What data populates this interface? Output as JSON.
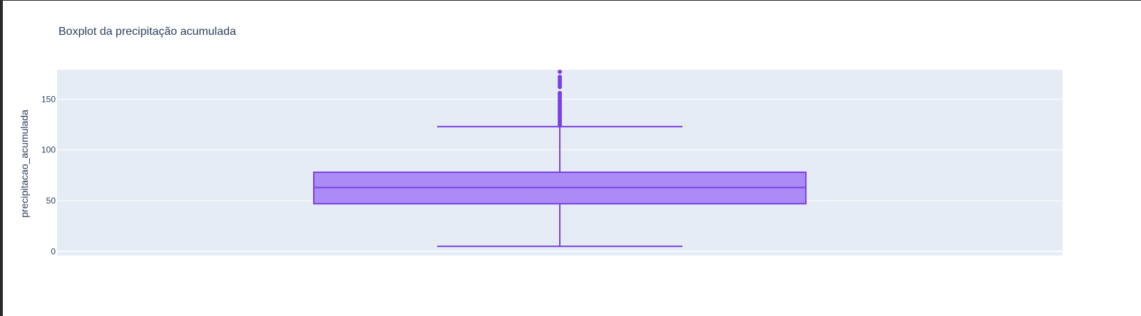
{
  "chart_data": {
    "type": "box",
    "title": "Boxplot da precipitação acumulada",
    "xlabel": "",
    "ylabel": "precipitacao_acumulada",
    "ylim": [
      -4,
      179
    ],
    "yticks": [
      0,
      50,
      100,
      150
    ],
    "grid": true,
    "legend": "none",
    "series": [
      {
        "lowerfence": 5,
        "q1": 47,
        "median": 63,
        "q3": 78,
        "upperfence": 123,
        "outliers": [
          124,
          126,
          128,
          130,
          132,
          134,
          136,
          138,
          140,
          142,
          144,
          146,
          148,
          150,
          152,
          154,
          156,
          162,
          164,
          166,
          168,
          170,
          172,
          177
        ]
      }
    ]
  },
  "colors": {
    "plot_bg": "#e5ecf6",
    "grid": "#ffffff",
    "box_line": "#7b3fe4",
    "box_fill": "#ab8cf7",
    "text": "#2a3f5f"
  }
}
